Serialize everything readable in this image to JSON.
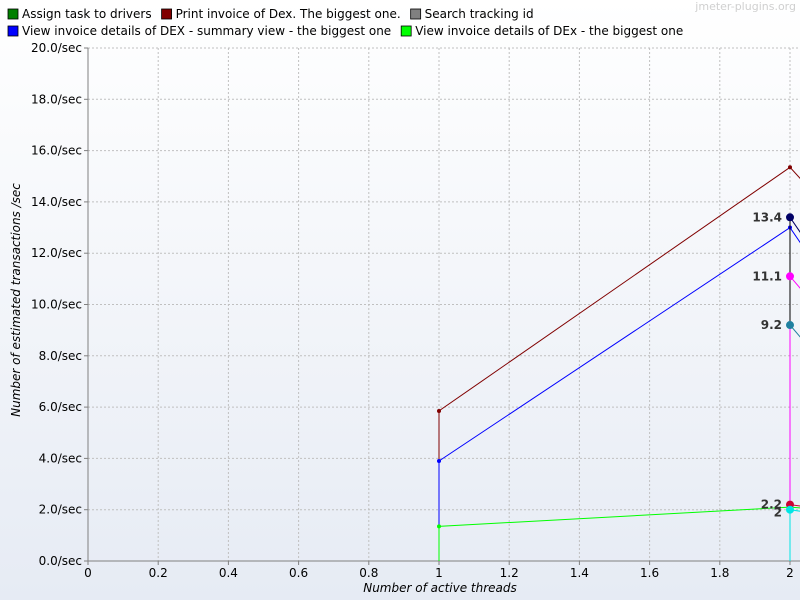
{
  "watermark": "jmeter-plugins.org",
  "chart_data": {
    "type": "line",
    "title": "",
    "xlabel": "Number of active threads",
    "ylabel": "Number of estimated transactions /sec",
    "xlim": [
      0,
      2
    ],
    "ylim": [
      0,
      20
    ],
    "x_ticks": [
      "0",
      "0.2",
      "0.4",
      "0.6",
      "0.8",
      "1",
      "1.2",
      "1.4",
      "1.6",
      "1.8",
      "2"
    ],
    "y_ticks": [
      "0.0/sec",
      "2.0/sec",
      "4.0/sec",
      "6.0/sec",
      "8.0/sec",
      "10.0/sec",
      "12.0/sec",
      "14.0/sec",
      "16.0/sec",
      "18.0/sec",
      "20.0/sec"
    ],
    "grid": true,
    "legend_position": "top",
    "legend": [
      {
        "name": "Assign task to drivers",
        "color": "#008000"
      },
      {
        "name": "Print invoice of Dex. The biggest one.",
        "color": "#800000"
      },
      {
        "name": "Search tracking id",
        "color": "#808080"
      },
      {
        "name": "View invoice details of DEX - summary view - the biggest one",
        "color": "#0000ff"
      },
      {
        "name": "View invoice details of DEx - the biggest one",
        "color": "#00ff00"
      }
    ],
    "series": [
      {
        "name": "Print invoice of Dex. The biggest one.",
        "color": "#800000",
        "points": [
          [
            1,
            0
          ],
          [
            1,
            5.85
          ],
          [
            2,
            15.35
          ],
          [
            2.05,
            14.6
          ]
        ]
      },
      {
        "name": "View invoice details of DEX - summary view - the biggest one",
        "color": "#0000ff",
        "points": [
          [
            1,
            0
          ],
          [
            1,
            3.9
          ],
          [
            2,
            13.0
          ],
          [
            2.05,
            12.0
          ]
        ]
      },
      {
        "name": "View invoice details of DEx - the biggest one",
        "color": "#00ff00",
        "points": [
          [
            1,
            0
          ],
          [
            1,
            1.35
          ],
          [
            2,
            2.1
          ],
          [
            2.05,
            2.05
          ]
        ]
      },
      {
        "color": "#000066",
        "points": [
          [
            2,
            13.4
          ],
          [
            2.05,
            12.4
          ]
        ]
      },
      {
        "color": "#ff00ff",
        "points": [
          [
            2,
            0
          ],
          [
            2,
            11.1
          ],
          [
            2.05,
            10.3
          ]
        ]
      },
      {
        "color": "#2080a0",
        "points": [
          [
            2,
            9.2
          ],
          [
            2.05,
            8.4
          ]
        ]
      },
      {
        "color": "#cc0033",
        "points": [
          [
            2,
            2.2
          ],
          [
            2.05,
            2.1
          ]
        ]
      },
      {
        "color": "#00e5e5",
        "points": [
          [
            2,
            0
          ],
          [
            2,
            2.0
          ],
          [
            2.05,
            1.9
          ]
        ]
      }
    ],
    "dark_vertical": {
      "color": "#000000",
      "x": 2,
      "y_from": 13.4,
      "y_to": 9.2
    },
    "data_labels": [
      {
        "text": "13.4",
        "x": 2,
        "y": 13.4,
        "color": "#000066"
      },
      {
        "text": "11.1",
        "x": 2,
        "y": 11.1,
        "color": "#ff00ff"
      },
      {
        "text": "9.2",
        "x": 2,
        "y": 9.2,
        "color": "#2080a0"
      },
      {
        "text": "2.2",
        "x": 2,
        "y": 2.2,
        "color": "#cc0033"
      },
      {
        "text": "2",
        "x": 2,
        "y": 2.0,
        "color": "#00e5e5"
      }
    ]
  }
}
